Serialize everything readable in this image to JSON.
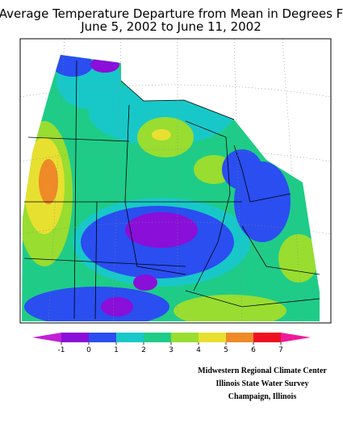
{
  "header": {
    "title": "Average Temperature Departure from Mean in Degrees F",
    "subtitle": "June 5, 2002 to June 11, 2002"
  },
  "map": {
    "legend": {
      "ticks": [
        -1,
        0,
        1,
        2,
        3,
        4,
        5,
        6,
        7
      ],
      "colors": [
        "#c21fd8",
        "#8a0fd8",
        "#2a4ef0",
        "#18c8c8",
        "#1ecc88",
        "#98dd30",
        "#e8e030",
        "#ee8a28",
        "#ee1020",
        "#ee1a9a"
      ]
    }
  },
  "credits": [
    "Midwestern Regional Climate Center",
    "Illinois State Water Survey",
    "Champaign, Illinois"
  ]
}
